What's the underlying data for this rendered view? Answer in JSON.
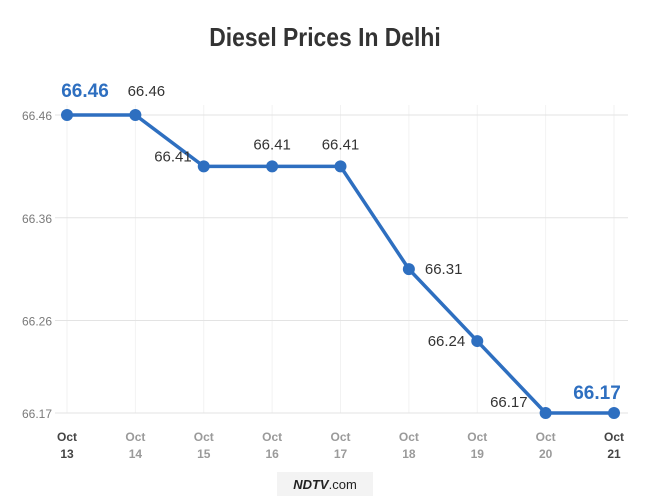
{
  "chart_data": {
    "type": "line",
    "title": "Diesel Prices In Delhi",
    "categories": [
      [
        "Oct",
        "13"
      ],
      [
        "Oct",
        "14"
      ],
      [
        "Oct",
        "15"
      ],
      [
        "Oct",
        "16"
      ],
      [
        "Oct",
        "17"
      ],
      [
        "Oct",
        "18"
      ],
      [
        "Oct",
        "19"
      ],
      [
        "Oct",
        "20"
      ],
      [
        "Oct",
        "21"
      ]
    ],
    "values": [
      66.46,
      66.46,
      66.41,
      66.41,
      66.41,
      66.31,
      66.24,
      66.17,
      66.17
    ],
    "yticks": [
      "66.17",
      "66.26",
      "66.36",
      "66.46"
    ],
    "ylim": [
      66.17,
      66.46
    ],
    "xlabel": "",
    "ylabel": "",
    "grid": "horizontal",
    "highlighted_points": [
      0,
      8
    ],
    "colors": {
      "line": "#2e6fc0",
      "grid": "#e3e3e3",
      "highlight_label": "#2e6fc0"
    }
  },
  "watermark": {
    "brand": "NDTV",
    "suffix": ".com"
  }
}
